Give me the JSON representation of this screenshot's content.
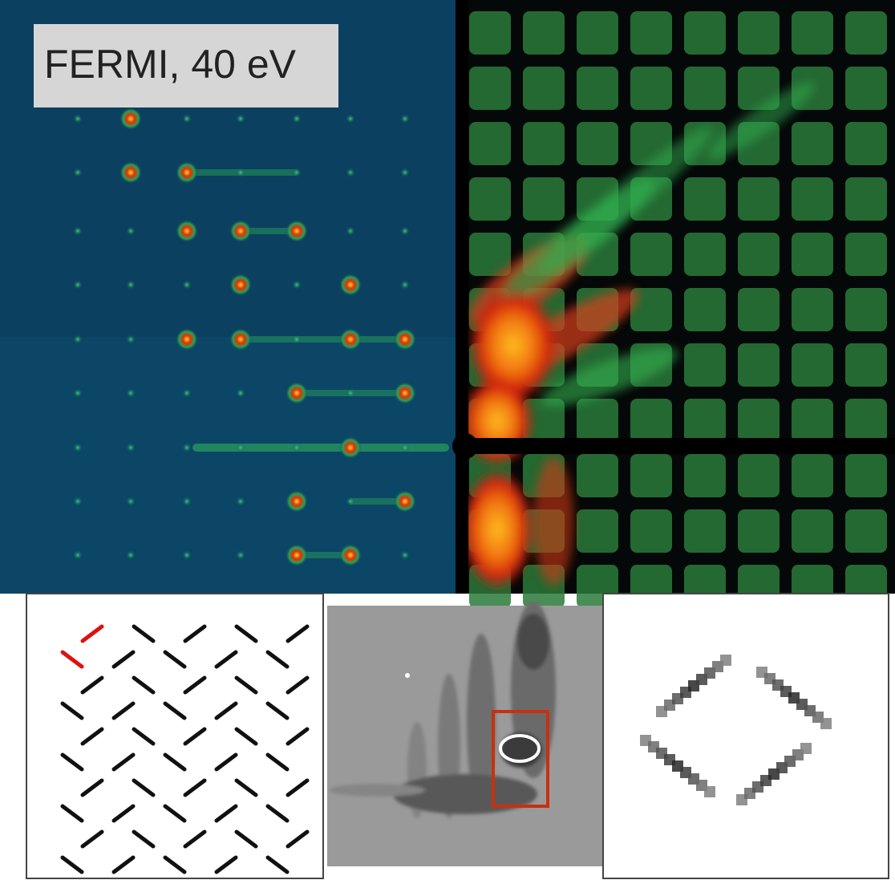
{
  "label": "FERMI, 40 eV"
}
